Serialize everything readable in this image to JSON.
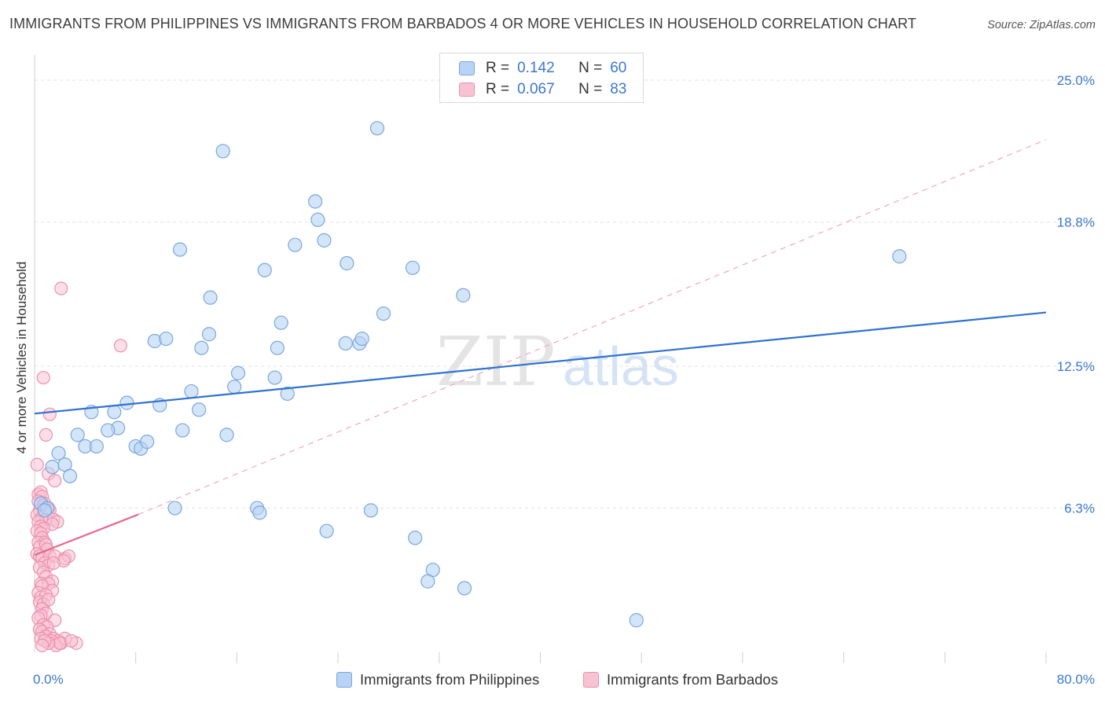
{
  "header": {
    "title": "IMMIGRANTS FROM PHILIPPINES VS IMMIGRANTS FROM BARBADOS 4 OR MORE VEHICLES IN HOUSEHOLD CORRELATION CHART",
    "source": "Source: ZipAtlas.com"
  },
  "legend": {
    "philippines": {
      "r_label": "R =",
      "r_value": "0.142",
      "n_label": "N =",
      "n_value": "60"
    },
    "barbados": {
      "r_label": "R =",
      "r_value": "0.067",
      "n_label": "N =",
      "n_value": "83"
    }
  },
  "bottom_legend": {
    "philippines": "Immigrants from Philippines",
    "barbados": "Immigrants from Barbados"
  },
  "watermark": {
    "zip": "ZIP",
    "atlas": "atlas"
  },
  "colors": {
    "blue_fill": "#b8d3f3",
    "blue_stroke": "#7aa7e0",
    "blue_line": "#2f72d0",
    "pink_fill": "#f7c3d3",
    "pink_stroke": "#ee8fae",
    "pink_line": "#e8668f",
    "axis_text_blue": "#3a78c9",
    "grid": "#e2e2e2"
  },
  "chart_data": {
    "type": "scatter",
    "title": "IMMIGRANTS FROM PHILIPPINES VS IMMIGRANTS FROM BARBADOS 4 OR MORE VEHICLES IN HOUSEHOLD CORRELATION CHART",
    "xlabel": "",
    "ylabel": "4 or more Vehicles in Household",
    "xlim": [
      0,
      80
    ],
    "ylim": [
      0,
      26.1
    ],
    "x_tick_labels": [
      "0.0%",
      "80.0%"
    ],
    "y_ticks": [
      6.3,
      12.5,
      18.8,
      25.0
    ],
    "y_tick_labels": [
      "6.3%",
      "12.5%",
      "18.8%",
      "25.0%"
    ],
    "x_minor_ticks": [
      8,
      16,
      24,
      32,
      40,
      48,
      56,
      64,
      72,
      80
    ],
    "series": [
      {
        "name": "Immigrants from Philippines",
        "color": "blue",
        "R": 0.142,
        "N": 60,
        "trend": {
          "x": [
            0,
            80
          ],
          "y": [
            10.43,
            14.85
          ],
          "style": "solid"
        },
        "points": [
          [
            27.1,
            22.9
          ],
          [
            14.9,
            21.9
          ],
          [
            22.2,
            19.7
          ],
          [
            22.4,
            18.9
          ],
          [
            11.5,
            17.6
          ],
          [
            20.6,
            17.8
          ],
          [
            22.9,
            18.0
          ],
          [
            18.2,
            16.7
          ],
          [
            24.7,
            17.0
          ],
          [
            29.9,
            16.8
          ],
          [
            68.4,
            17.3
          ],
          [
            13.9,
            15.5
          ],
          [
            33.9,
            15.6
          ],
          [
            19.5,
            14.4
          ],
          [
            27.6,
            14.8
          ],
          [
            13.8,
            13.9
          ],
          [
            9.5,
            13.6
          ],
          [
            10.4,
            13.7
          ],
          [
            13.2,
            13.3
          ],
          [
            24.6,
            13.5
          ],
          [
            25.7,
            13.5
          ],
          [
            25.9,
            13.7
          ],
          [
            19.2,
            13.3
          ],
          [
            16.1,
            12.2
          ],
          [
            19.0,
            12.0
          ],
          [
            15.8,
            11.6
          ],
          [
            12.4,
            11.4
          ],
          [
            20.0,
            11.3
          ],
          [
            7.3,
            10.9
          ],
          [
            9.9,
            10.8
          ],
          [
            4.5,
            10.5
          ],
          [
            6.3,
            10.5
          ],
          [
            13.0,
            10.6
          ],
          [
            6.6,
            9.8
          ],
          [
            5.8,
            9.7
          ],
          [
            11.7,
            9.7
          ],
          [
            3.4,
            9.5
          ],
          [
            15.2,
            9.5
          ],
          [
            4.0,
            9.0
          ],
          [
            4.9,
            9.0
          ],
          [
            8.0,
            9.0
          ],
          [
            8.4,
            8.9
          ],
          [
            8.9,
            9.2
          ],
          [
            1.9,
            8.7
          ],
          [
            1.4,
            8.1
          ],
          [
            2.4,
            8.2
          ],
          [
            2.8,
            7.7
          ],
          [
            0.5,
            6.5
          ],
          [
            1.0,
            6.3
          ],
          [
            0.8,
            6.2
          ],
          [
            11.1,
            6.3
          ],
          [
            17.6,
            6.3
          ],
          [
            17.8,
            6.1
          ],
          [
            26.6,
            6.2
          ],
          [
            23.1,
            5.3
          ],
          [
            30.1,
            5.0
          ],
          [
            31.5,
            3.6
          ],
          [
            31.1,
            3.1
          ],
          [
            34.0,
            2.8
          ],
          [
            47.6,
            1.4
          ]
        ]
      },
      {
        "name": "Immigrants from Barbados",
        "color": "pink",
        "R": 0.067,
        "N": 83,
        "trend": {
          "x": [
            0,
            8.2
          ],
          "y": [
            4.25,
            6.02
          ],
          "style": "solid"
        },
        "trend_extended": {
          "x": [
            8.2,
            80
          ],
          "y": [
            6.02,
            22.4
          ],
          "style": "dashed"
        },
        "points": [
          [
            2.1,
            15.9
          ],
          [
            6.8,
            13.4
          ],
          [
            0.7,
            12.0
          ],
          [
            1.2,
            10.4
          ],
          [
            0.9,
            9.5
          ],
          [
            0.2,
            8.2
          ],
          [
            1.1,
            7.8
          ],
          [
            1.6,
            7.5
          ],
          [
            0.3,
            6.9
          ],
          [
            0.5,
            7.0
          ],
          [
            0.6,
            6.8
          ],
          [
            0.8,
            6.5
          ],
          [
            0.3,
            6.6
          ],
          [
            0.7,
            6.4
          ],
          [
            1.1,
            6.3
          ],
          [
            1.2,
            6.2
          ],
          [
            0.4,
            6.2
          ],
          [
            0.2,
            6.0
          ],
          [
            0.6,
            5.9
          ],
          [
            0.9,
            5.8
          ],
          [
            1.5,
            5.8
          ],
          [
            1.8,
            5.7
          ],
          [
            0.3,
            5.7
          ],
          [
            0.5,
            5.5
          ],
          [
            1.4,
            5.6
          ],
          [
            0.7,
            5.4
          ],
          [
            0.2,
            5.3
          ],
          [
            0.5,
            5.2
          ],
          [
            0.6,
            5.0
          ],
          [
            0.3,
            4.8
          ],
          [
            0.8,
            4.8
          ],
          [
            0.4,
            4.6
          ],
          [
            0.9,
            4.7
          ],
          [
            1.0,
            4.5
          ],
          [
            0.2,
            4.3
          ],
          [
            0.4,
            4.2
          ],
          [
            0.6,
            4.1
          ],
          [
            1.2,
            4.2
          ],
          [
            1.6,
            4.2
          ],
          [
            2.4,
            4.1
          ],
          [
            2.7,
            4.2
          ],
          [
            2.3,
            4.0
          ],
          [
            0.8,
            3.9
          ],
          [
            1.1,
            3.8
          ],
          [
            1.5,
            3.9
          ],
          [
            0.4,
            3.7
          ],
          [
            0.7,
            3.5
          ],
          [
            0.9,
            3.3
          ],
          [
            1.4,
            3.1
          ],
          [
            0.5,
            3.0
          ],
          [
            1.1,
            3.0
          ],
          [
            0.6,
            2.9
          ],
          [
            1.4,
            2.7
          ],
          [
            0.3,
            2.6
          ],
          [
            0.5,
            2.4
          ],
          [
            0.9,
            2.5
          ],
          [
            0.4,
            2.2
          ],
          [
            0.7,
            2.1
          ],
          [
            1.1,
            2.3
          ],
          [
            0.6,
            1.9
          ],
          [
            0.9,
            1.7
          ],
          [
            0.5,
            1.6
          ],
          [
            1.6,
            1.4
          ],
          [
            0.3,
            1.5
          ],
          [
            0.7,
            1.2
          ],
          [
            1.0,
            1.1
          ],
          [
            0.4,
            1.0
          ],
          [
            0.6,
            0.9
          ],
          [
            1.2,
            0.8
          ],
          [
            0.9,
            0.7
          ],
          [
            0.5,
            0.6
          ],
          [
            1.5,
            0.6
          ],
          [
            1.9,
            0.5
          ],
          [
            1.3,
            0.5
          ],
          [
            2.1,
            0.4
          ],
          [
            1.7,
            0.3
          ],
          [
            2.4,
            0.6
          ],
          [
            2.0,
            0.4
          ],
          [
            1.1,
            0.4
          ],
          [
            0.8,
            0.5
          ],
          [
            3.3,
            0.4
          ],
          [
            2.9,
            0.5
          ],
          [
            0.6,
            0.3
          ]
        ]
      }
    ]
  }
}
